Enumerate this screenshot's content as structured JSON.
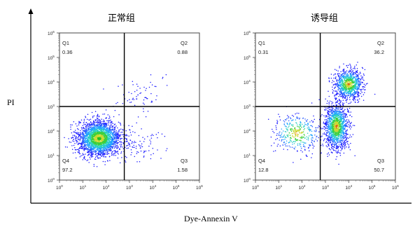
{
  "figure": {
    "y_axis_label": "PI",
    "x_axis_label": "Dye-Annexin V"
  },
  "chart_data": [
    {
      "type": "scatter",
      "subtype": "flow-cytometry-density-plot",
      "title": "正常组",
      "xscale": "log",
      "yscale": "log",
      "xlim": [
        1,
        1000000
      ],
      "ylim": [
        1,
        1000000
      ],
      "x_ticks": [
        "10",
        "10",
        "10",
        "10",
        "10",
        "10",
        "10"
      ],
      "x_tick_exponents": [
        "0",
        "1",
        "2",
        "3",
        "4",
        "5",
        "6"
      ],
      "y_ticks": [
        "10",
        "10",
        "10",
        "10",
        "10",
        "10",
        "10"
      ],
      "y_tick_exponents": [
        "0",
        "1",
        "2",
        "3",
        "4",
        "5",
        "6"
      ],
      "gate": {
        "x": 600,
        "y": 1000
      },
      "quadrants": [
        {
          "name": "Q1",
          "value": "0.36"
        },
        {
          "name": "Q2",
          "value": "0.88"
        },
        {
          "name": "Q3",
          "value": "1.58"
        },
        {
          "name": "Q4",
          "value": "97.2"
        }
      ],
      "populations": [
        {
          "center": [
            50,
            50
          ],
          "spread_decades": [
            0.45,
            0.35
          ],
          "share": 0.97,
          "peak_color": "#20c020"
        },
        {
          "center": [
            3000,
            3000
          ],
          "spread_decades": [
            0.5,
            0.4
          ],
          "share": 0.01
        },
        {
          "center": [
            2000,
            30
          ],
          "spread_decades": [
            0.5,
            0.4
          ],
          "share": 0.02
        }
      ]
    },
    {
      "type": "scatter",
      "subtype": "flow-cytometry-density-plot",
      "title": "诱导组",
      "xscale": "log",
      "yscale": "log",
      "xlim": [
        1,
        1000000
      ],
      "ylim": [
        1,
        1000000
      ],
      "x_ticks": [
        "10",
        "10",
        "10",
        "10",
        "10",
        "10",
        "10"
      ],
      "x_tick_exponents": [
        "0",
        "1",
        "2",
        "3",
        "4",
        "5",
        "6"
      ],
      "y_ticks": [
        "10",
        "10",
        "10",
        "10",
        "10",
        "10",
        "10"
      ],
      "y_tick_exponents": [
        "0",
        "1",
        "2",
        "3",
        "4",
        "5",
        "6"
      ],
      "gate": {
        "x": 600,
        "y": 1000
      },
      "quadrants": [
        {
          "name": "Q1",
          "value": "0.31"
        },
        {
          "name": "Q2",
          "value": "36.2"
        },
        {
          "name": "Q3",
          "value": "50.7"
        },
        {
          "name": "Q4",
          "value": "12.8"
        }
      ],
      "populations": [
        {
          "center": [
            10000,
            8000
          ],
          "spread_decades": [
            0.3,
            0.3
          ],
          "share": 0.36,
          "peak_color": "#e06010"
        },
        {
          "center": [
            3000,
            150
          ],
          "spread_decades": [
            0.25,
            0.45
          ],
          "share": 0.51,
          "peak_color": "#e06010"
        },
        {
          "center": [
            60,
            80
          ],
          "spread_decades": [
            0.5,
            0.4
          ],
          "share": 0.13
        }
      ]
    }
  ]
}
